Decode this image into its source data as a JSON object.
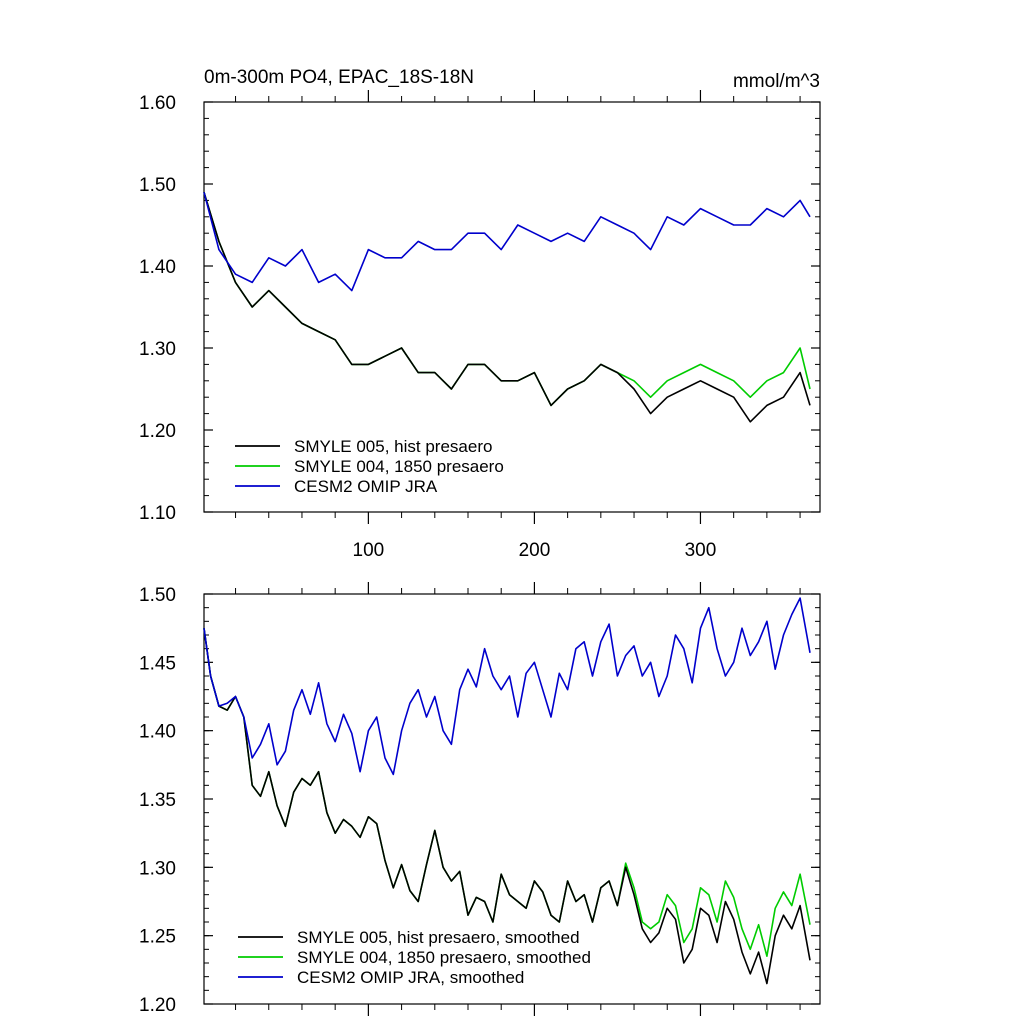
{
  "chart_data": [
    {
      "type": "line",
      "title": "0m-300m PO4, EPAC_18S-18N",
      "units": "mmol/m^3",
      "xlabel": "",
      "ylabel": "",
      "xlim": [
        1,
        372
      ],
      "ylim": [
        1.1,
        1.6
      ],
      "yticks": [
        "1.60",
        "1.50",
        "1.40",
        "1.30",
        "1.20",
        "1.10"
      ],
      "ytick_values": [
        1.6,
        1.5,
        1.4,
        1.3,
        1.2,
        1.1
      ],
      "xticks": [
        "100",
        "200",
        "300"
      ],
      "xtick_values": [
        100,
        200,
        300
      ],
      "legend_position": "bottom-left",
      "series": [
        {
          "name": "SMYLE 005, hist presaero",
          "color": "#000000",
          "x": [
            1,
            10,
            20,
            30,
            40,
            50,
            60,
            70,
            80,
            90,
            100,
            110,
            120,
            130,
            140,
            150,
            160,
            170,
            180,
            190,
            200,
            210,
            220,
            230,
            240,
            250,
            260,
            270,
            280,
            290,
            300,
            310,
            320,
            330,
            340,
            350,
            360,
            366
          ],
          "values": [
            1.49,
            1.43,
            1.38,
            1.35,
            1.37,
            1.35,
            1.33,
            1.32,
            1.31,
            1.28,
            1.28,
            1.29,
            1.3,
            1.27,
            1.27,
            1.25,
            1.28,
            1.28,
            1.26,
            1.26,
            1.27,
            1.23,
            1.25,
            1.26,
            1.28,
            1.27,
            1.25,
            1.22,
            1.24,
            1.25,
            1.26,
            1.25,
            1.24,
            1.21,
            1.23,
            1.24,
            1.27,
            1.23
          ]
        },
        {
          "name": "SMYLE 004, 1850 presaero",
          "color": "#00cc00",
          "x": [
            1,
            10,
            20,
            30,
            40,
            50,
            60,
            70,
            80,
            90,
            100,
            110,
            120,
            130,
            140,
            150,
            160,
            170,
            180,
            190,
            200,
            210,
            220,
            230,
            240,
            250,
            260,
            270,
            280,
            290,
            300,
            310,
            320,
            330,
            340,
            350,
            360,
            366
          ],
          "values": [
            1.49,
            1.43,
            1.38,
            1.35,
            1.37,
            1.35,
            1.33,
            1.32,
            1.31,
            1.28,
            1.28,
            1.29,
            1.3,
            1.27,
            1.27,
            1.25,
            1.28,
            1.28,
            1.26,
            1.26,
            1.27,
            1.23,
            1.25,
            1.26,
            1.28,
            1.27,
            1.26,
            1.24,
            1.26,
            1.27,
            1.28,
            1.27,
            1.26,
            1.24,
            1.26,
            1.27,
            1.3,
            1.25
          ]
        },
        {
          "name": "CESM2 OMIP JRA",
          "color": "#0000cc",
          "x": [
            1,
            10,
            20,
            30,
            40,
            50,
            60,
            70,
            80,
            90,
            100,
            110,
            120,
            130,
            140,
            150,
            160,
            170,
            180,
            190,
            200,
            210,
            220,
            230,
            240,
            250,
            260,
            270,
            280,
            290,
            300,
            310,
            320,
            330,
            340,
            350,
            360,
            366
          ],
          "values": [
            1.49,
            1.42,
            1.39,
            1.38,
            1.41,
            1.4,
            1.42,
            1.38,
            1.39,
            1.37,
            1.42,
            1.41,
            1.41,
            1.43,
            1.42,
            1.42,
            1.44,
            1.44,
            1.42,
            1.45,
            1.44,
            1.43,
            1.44,
            1.43,
            1.46,
            1.45,
            1.44,
            1.42,
            1.46,
            1.45,
            1.47,
            1.46,
            1.45,
            1.45,
            1.47,
            1.46,
            1.48,
            1.46
          ]
        }
      ]
    },
    {
      "type": "line",
      "title": "",
      "xlabel": "",
      "ylabel": "",
      "xlim": [
        1,
        372
      ],
      "ylim": [
        1.2,
        1.5
      ],
      "yticks": [
        "1.50",
        "1.45",
        "1.40",
        "1.35",
        "1.30",
        "1.25",
        "1.20"
      ],
      "ytick_values": [
        1.5,
        1.45,
        1.4,
        1.35,
        1.3,
        1.25,
        1.2
      ],
      "xtick_values": [
        100,
        200,
        300
      ],
      "legend_position": "bottom-left",
      "series": [
        {
          "name": "SMYLE 005, hist presaero, smoothed",
          "color": "#000000",
          "x": [
            1,
            5,
            10,
            15,
            20,
            25,
            30,
            35,
            40,
            45,
            50,
            55,
            60,
            65,
            70,
            75,
            80,
            85,
            90,
            95,
            100,
            105,
            110,
            115,
            120,
            125,
            130,
            135,
            140,
            145,
            150,
            155,
            160,
            165,
            170,
            175,
            180,
            185,
            190,
            195,
            200,
            205,
            210,
            215,
            220,
            225,
            230,
            235,
            240,
            245,
            250,
            255,
            260,
            265,
            270,
            275,
            280,
            285,
            290,
            295,
            300,
            305,
            310,
            315,
            320,
            325,
            330,
            335,
            340,
            345,
            350,
            355,
            360,
            366
          ],
          "values": [
            1.475,
            1.44,
            1.418,
            1.415,
            1.425,
            1.41,
            1.36,
            1.352,
            1.37,
            1.345,
            1.33,
            1.355,
            1.365,
            1.36,
            1.37,
            1.34,
            1.325,
            1.335,
            1.33,
            1.322,
            1.337,
            1.332,
            1.305,
            1.285,
            1.302,
            1.283,
            1.275,
            1.302,
            1.327,
            1.3,
            1.29,
            1.297,
            1.265,
            1.278,
            1.275,
            1.26,
            1.295,
            1.28,
            1.275,
            1.27,
            1.29,
            1.282,
            1.265,
            1.26,
            1.29,
            1.275,
            1.28,
            1.26,
            1.285,
            1.29,
            1.272,
            1.3,
            1.28,
            1.255,
            1.245,
            1.252,
            1.27,
            1.262,
            1.23,
            1.24,
            1.27,
            1.265,
            1.245,
            1.275,
            1.262,
            1.238,
            1.222,
            1.238,
            1.215,
            1.25,
            1.265,
            1.255,
            1.272,
            1.232
          ]
        },
        {
          "name": "SMYLE 004, 1850 presaero, smoothed",
          "color": "#00cc00",
          "x": [
            1,
            5,
            10,
            15,
            20,
            25,
            30,
            35,
            40,
            45,
            50,
            55,
            60,
            65,
            70,
            75,
            80,
            85,
            90,
            95,
            100,
            105,
            110,
            115,
            120,
            125,
            130,
            135,
            140,
            145,
            150,
            155,
            160,
            165,
            170,
            175,
            180,
            185,
            190,
            195,
            200,
            205,
            210,
            215,
            220,
            225,
            230,
            235,
            240,
            245,
            250,
            255,
            260,
            265,
            270,
            275,
            280,
            285,
            290,
            295,
            300,
            305,
            310,
            315,
            320,
            325,
            330,
            335,
            340,
            345,
            350,
            355,
            360,
            366
          ],
          "values": [
            1.475,
            1.44,
            1.418,
            1.415,
            1.425,
            1.41,
            1.36,
            1.352,
            1.37,
            1.345,
            1.33,
            1.355,
            1.365,
            1.36,
            1.37,
            1.34,
            1.325,
            1.335,
            1.33,
            1.322,
            1.337,
            1.332,
            1.305,
            1.285,
            1.302,
            1.283,
            1.275,
            1.302,
            1.327,
            1.3,
            1.29,
            1.297,
            1.265,
            1.278,
            1.275,
            1.26,
            1.295,
            1.28,
            1.275,
            1.27,
            1.29,
            1.282,
            1.265,
            1.26,
            1.29,
            1.275,
            1.28,
            1.26,
            1.285,
            1.29,
            1.272,
            1.303,
            1.285,
            1.26,
            1.255,
            1.26,
            1.28,
            1.272,
            1.245,
            1.255,
            1.285,
            1.28,
            1.26,
            1.29,
            1.278,
            1.255,
            1.24,
            1.258,
            1.235,
            1.27,
            1.282,
            1.272,
            1.295,
            1.258
          ]
        },
        {
          "name": "CESM2 OMIP JRA, smoothed",
          "color": "#0000cc",
          "x": [
            1,
            5,
            10,
            15,
            20,
            25,
            30,
            35,
            40,
            45,
            50,
            55,
            60,
            65,
            70,
            75,
            80,
            85,
            90,
            95,
            100,
            105,
            110,
            115,
            120,
            125,
            130,
            135,
            140,
            145,
            150,
            155,
            160,
            165,
            170,
            175,
            180,
            185,
            190,
            195,
            200,
            205,
            210,
            215,
            220,
            225,
            230,
            235,
            240,
            245,
            250,
            255,
            260,
            265,
            270,
            275,
            280,
            285,
            290,
            295,
            300,
            305,
            310,
            315,
            320,
            325,
            330,
            335,
            340,
            345,
            350,
            355,
            360,
            366
          ],
          "values": [
            1.475,
            1.44,
            1.418,
            1.42,
            1.425,
            1.41,
            1.38,
            1.39,
            1.405,
            1.375,
            1.385,
            1.415,
            1.43,
            1.412,
            1.435,
            1.405,
            1.392,
            1.412,
            1.398,
            1.37,
            1.4,
            1.41,
            1.38,
            1.368,
            1.4,
            1.42,
            1.43,
            1.41,
            1.425,
            1.4,
            1.39,
            1.43,
            1.445,
            1.432,
            1.46,
            1.44,
            1.43,
            1.44,
            1.41,
            1.442,
            1.45,
            1.43,
            1.41,
            1.442,
            1.43,
            1.46,
            1.465,
            1.44,
            1.465,
            1.478,
            1.44,
            1.455,
            1.462,
            1.44,
            1.45,
            1.425,
            1.44,
            1.47,
            1.46,
            1.435,
            1.475,
            1.49,
            1.46,
            1.44,
            1.45,
            1.475,
            1.455,
            1.465,
            1.48,
            1.445,
            1.47,
            1.485,
            1.497,
            1.457
          ]
        }
      ]
    }
  ]
}
